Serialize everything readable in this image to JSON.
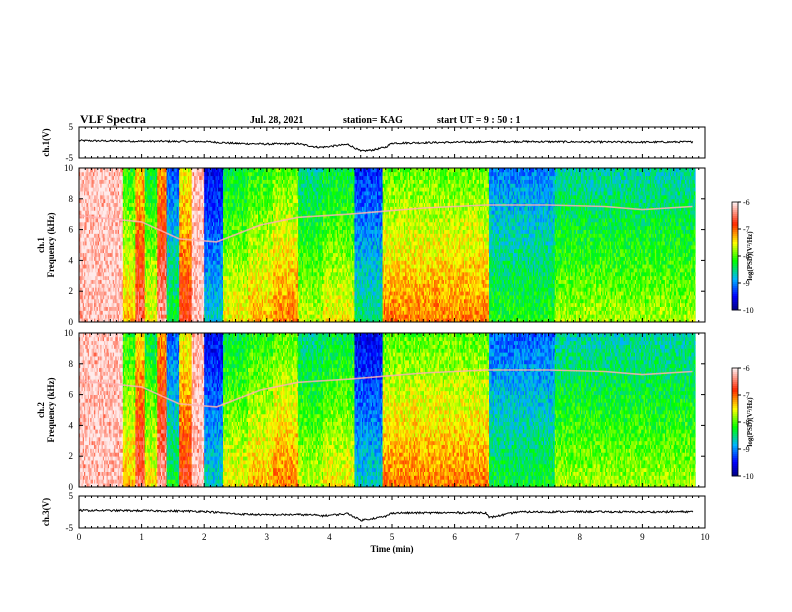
{
  "header": {
    "title": "VLF Spectra",
    "date": "Jul. 28, 2021",
    "station": "station= KAG",
    "start_ut": "start UT =  9 : 50 : 1"
  },
  "colors": {
    "spectrogram_scale": [
      "#0000ff",
      "#00b4ff",
      "#00ff00",
      "#ffff00",
      "#ff0000",
      "#ffffff"
    ],
    "trace": "#000000"
  },
  "chart_data": [
    {
      "type": "line",
      "name": "ch1-waveform",
      "ylabel": "ch.1(V)",
      "ylim": [
        -5,
        5
      ],
      "yticks": [
        "5",
        "-5"
      ],
      "xlim": [
        0,
        10
      ],
      "x": [
        0,
        1,
        2,
        2.5,
        3.0,
        3.5,
        3.8,
        3.9,
        4.3,
        4.5,
        4.7,
        4.9,
        5.0,
        6.5,
        7,
        8,
        9,
        9.8
      ],
      "y": [
        0.6,
        0.4,
        0.3,
        -0.3,
        -0.5,
        -0.4,
        -1.5,
        -1.5,
        -0.6,
        -2.8,
        -2.4,
        -1.5,
        -0.2,
        0.2,
        0.3,
        0.2,
        0.1,
        0.2
      ]
    },
    {
      "type": "heatmap",
      "name": "ch1-spectrogram",
      "ylabel": "ch.1\nFrequency (kHz)",
      "ylim": [
        0,
        10
      ],
      "yticks": [
        "0",
        "2",
        "4",
        "6",
        "8",
        "10"
      ],
      "xlim": [
        0,
        10
      ],
      "colorbar": {
        "label": "log(PSD)(V²/Hz)",
        "range": [
          -10,
          -6
        ],
        "ticks": [
          "-6",
          "-7",
          "-8",
          "-9",
          "-10"
        ]
      },
      "segments": [
        {
          "t0": 0.0,
          "t1": 0.7,
          "level": 0.08
        },
        {
          "t0": 0.7,
          "t1": 0.9,
          "level": 0.5
        },
        {
          "t0": 0.9,
          "t1": 1.05,
          "level": 0.3
        },
        {
          "t0": 1.05,
          "t1": 1.25,
          "level": 0.55
        },
        {
          "t0": 1.25,
          "t1": 1.4,
          "level": 0.25
        },
        {
          "t0": 1.4,
          "t1": 1.6,
          "level": 0.75
        },
        {
          "t0": 1.6,
          "t1": 1.8,
          "level": 0.35
        },
        {
          "t0": 1.8,
          "t1": 2.0,
          "level": 0.15
        },
        {
          "t0": 2.0,
          "t1": 2.3,
          "level": 0.85
        },
        {
          "t0": 2.3,
          "t1": 2.7,
          "level": 0.55
        },
        {
          "t0": 2.7,
          "t1": 3.1,
          "level": 0.5
        },
        {
          "t0": 3.1,
          "t1": 3.5,
          "level": 0.45
        },
        {
          "t0": 3.5,
          "t1": 3.9,
          "level": 0.6
        },
        {
          "t0": 3.9,
          "t1": 4.4,
          "level": 0.55
        },
        {
          "t0": 4.4,
          "t1": 4.85,
          "level": 0.8
        },
        {
          "t0": 4.85,
          "t1": 6.55,
          "level": 0.45
        },
        {
          "t0": 6.55,
          "t1": 7.6,
          "level": 0.72
        },
        {
          "t0": 7.6,
          "t1": 9.85,
          "level": 0.62
        }
      ],
      "tone_line_khz": [
        [
          0.0,
          6.9
        ],
        [
          1.0,
          6.5
        ],
        [
          1.6,
          5.4
        ],
        [
          2.2,
          5.2
        ],
        [
          2.9,
          6.3
        ],
        [
          3.5,
          6.8
        ],
        [
          4.3,
          7.0
        ],
        [
          4.9,
          7.2
        ],
        [
          5.5,
          7.4
        ],
        [
          6.5,
          7.6
        ],
        [
          7.5,
          7.6
        ],
        [
          8.4,
          7.5
        ],
        [
          9.0,
          7.3
        ],
        [
          9.8,
          7.5
        ]
      ]
    },
    {
      "type": "heatmap",
      "name": "ch2-spectrogram",
      "ylabel": "ch.2\nFrequency (kHz)",
      "ylim": [
        0,
        10
      ],
      "yticks": [
        "0",
        "2",
        "4",
        "6",
        "8",
        "10"
      ],
      "xlim": [
        0,
        10
      ],
      "colorbar": {
        "label": "log(PSD)(V²/Hz)",
        "range": [
          -10,
          -6
        ],
        "ticks": [
          "-6",
          "-7",
          "-8",
          "-9",
          "-10"
        ]
      },
      "segments": [
        {
          "t0": 0.0,
          "t1": 0.7,
          "level": 0.08
        },
        {
          "t0": 0.7,
          "t1": 0.9,
          "level": 0.5
        },
        {
          "t0": 0.9,
          "t1": 1.05,
          "level": 0.3
        },
        {
          "t0": 1.05,
          "t1": 1.25,
          "level": 0.55
        },
        {
          "t0": 1.25,
          "t1": 1.4,
          "level": 0.25
        },
        {
          "t0": 1.4,
          "t1": 1.6,
          "level": 0.75
        },
        {
          "t0": 1.6,
          "t1": 1.8,
          "level": 0.35
        },
        {
          "t0": 1.8,
          "t1": 2.0,
          "level": 0.15
        },
        {
          "t0": 2.0,
          "t1": 2.3,
          "level": 0.85
        },
        {
          "t0": 2.3,
          "t1": 2.7,
          "level": 0.55
        },
        {
          "t0": 2.7,
          "t1": 3.1,
          "level": 0.5
        },
        {
          "t0": 3.1,
          "t1": 3.5,
          "level": 0.45
        },
        {
          "t0": 3.5,
          "t1": 3.9,
          "level": 0.6
        },
        {
          "t0": 3.9,
          "t1": 4.4,
          "level": 0.55
        },
        {
          "t0": 4.4,
          "t1": 4.85,
          "level": 0.85
        },
        {
          "t0": 4.85,
          "t1": 6.55,
          "level": 0.45
        },
        {
          "t0": 6.55,
          "t1": 7.6,
          "level": 0.75
        },
        {
          "t0": 7.6,
          "t1": 9.85,
          "level": 0.62
        }
      ],
      "tone_line_khz": [
        [
          0.0,
          6.9
        ],
        [
          1.0,
          6.5
        ],
        [
          1.6,
          5.4
        ],
        [
          2.2,
          5.2
        ],
        [
          2.9,
          6.3
        ],
        [
          3.5,
          6.8
        ],
        [
          4.3,
          7.0
        ],
        [
          4.9,
          7.2
        ],
        [
          5.5,
          7.4
        ],
        [
          6.5,
          7.6
        ],
        [
          7.5,
          7.6
        ],
        [
          8.4,
          7.5
        ],
        [
          9.0,
          7.3
        ],
        [
          9.8,
          7.5
        ]
      ]
    },
    {
      "type": "line",
      "name": "ch3-waveform",
      "ylabel": "ch.3(V)",
      "ylim": [
        -5,
        5
      ],
      "yticks": [
        "5",
        "-5"
      ],
      "xlim": [
        0,
        10
      ],
      "xlabel": "Time (min)",
      "xticks": [
        "0",
        "1",
        "2",
        "3",
        "4",
        "5",
        "6",
        "7",
        "8",
        "9",
        "10"
      ],
      "x": [
        0,
        1,
        2,
        2.5,
        3.0,
        3.5,
        3.8,
        3.9,
        4.3,
        4.5,
        4.7,
        4.9,
        5.0,
        6.5,
        6.55,
        7,
        8,
        9,
        9.8
      ],
      "y": [
        0.5,
        0.4,
        0.2,
        -0.6,
        -0.9,
        -0.8,
        -1.0,
        -1.2,
        -0.5,
        -2.6,
        -2.0,
        -1.4,
        -0.3,
        -0.2,
        -1.8,
        0.0,
        0.1,
        0.0,
        0.1
      ]
    }
  ]
}
